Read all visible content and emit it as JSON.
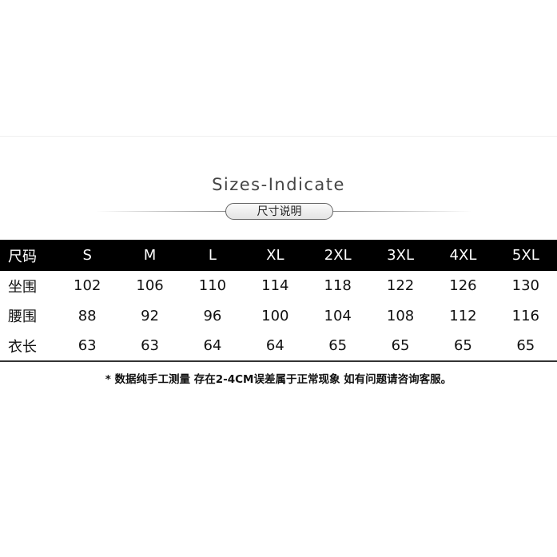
{
  "title": "Sizes-Indicate",
  "badge": "尺寸说明",
  "table": {
    "header": [
      "尺码",
      "S",
      "M",
      "L",
      "XL",
      "2XL",
      "3XL",
      "4XL",
      "5XL"
    ],
    "rows": [
      [
        "坐围",
        "102",
        "106",
        "110",
        "114",
        "118",
        "122",
        "126",
        "130"
      ],
      [
        "腰围",
        "88",
        "92",
        "96",
        "100",
        "104",
        "108",
        "112",
        "116"
      ],
      [
        "衣长",
        "63",
        "63",
        "64",
        "64",
        "65",
        "65",
        "65",
        "65"
      ]
    ]
  },
  "note": "* 数据纯手工测量  存在2-4CM误差属于正常现象  如有问题请咨询客服。",
  "colors": {
    "header_bg": "#000000",
    "header_text": "#ffffff"
  }
}
